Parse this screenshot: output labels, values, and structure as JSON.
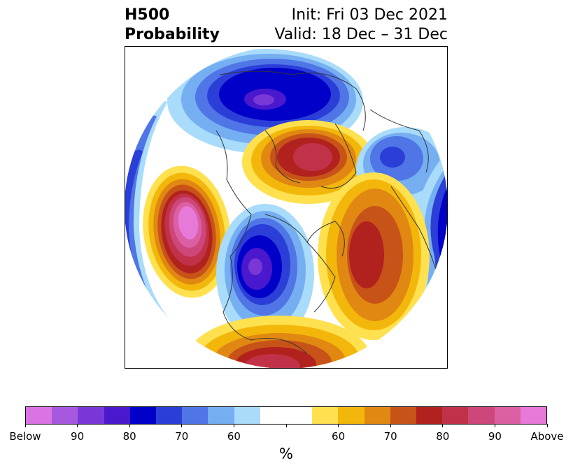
{
  "title": {
    "left_line1": "H500",
    "left_line2": "Probability",
    "right_line1": "Init: Fri 03 Dec 2021",
    "right_line2": "Valid: 18 Dec – 31 Dec"
  },
  "colorbar": {
    "unit": "%",
    "colors": [
      "#da74e3",
      "#a659de",
      "#7a37d8",
      "#4a18cd",
      "#0000c8",
      "#2b3ed8",
      "#4f75e6",
      "#76aef2",
      "#a9dbfb",
      "#ffffff",
      "#ffffff",
      "#ffe14f",
      "#f3b70b",
      "#e08812",
      "#c85318",
      "#b1221e",
      "#c13249",
      "#cd477a",
      "#db5fa3",
      "#e77ad8"
    ],
    "labels": [
      "Below",
      "90",
      "80",
      "70",
      "60",
      "",
      "60",
      "70",
      "80",
      "90",
      "Above"
    ]
  },
  "map": {
    "projection": "north-polar-stereographic",
    "anomalies": [
      {
        "region": "North Pacific",
        "sign": "above",
        "peak_probability": "Above"
      },
      {
        "region": "Western North America",
        "sign": "below",
        "peak_probability": "90"
      },
      {
        "region": "Greenland",
        "sign": "above",
        "peak_probability": "80"
      },
      {
        "region": "Northern Siberia",
        "sign": "below",
        "peak_probability": "80"
      },
      {
        "region": "North Atlantic",
        "sign": "above",
        "peak_probability": "80"
      },
      {
        "region": "Southern United States",
        "sign": "above",
        "peak_probability": "80"
      },
      {
        "region": "Scandinavia",
        "sign": "below",
        "peak_probability": "70"
      },
      {
        "region": "Central Asia",
        "sign": "below",
        "peak_probability": "80"
      }
    ]
  }
}
